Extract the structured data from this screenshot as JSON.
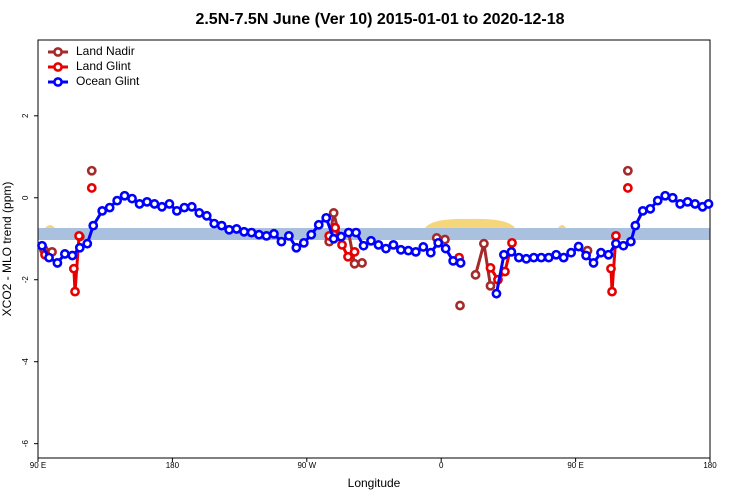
{
  "chart_data": {
    "type": "line",
    "title": "2.5N-7.5N June (Ver 10)   2015-01-01 to 2020-12-18",
    "x_label": "Longitude",
    "y_label": "XCO2 - MLO trend (ppm)",
    "xlim": [
      90,
      540
    ],
    "ylim": [
      -6.35,
      3.85
    ],
    "xticks": [
      {
        "value": 90,
        "label": "90 E"
      },
      180,
      {
        "value": 270,
        "label": "90 W"
      },
      {
        "value": 360,
        "label": "0"
      },
      {
        "value": 450,
        "label": "90 E"
      },
      {
        "value": 540,
        "label": "180"
      }
    ],
    "yticks": [
      -6,
      -4,
      -2,
      0,
      2
    ],
    "legend": "top-left",
    "series": [
      {
        "name": "Land Nadir",
        "color": "#a52a2a",
        "x": [
          94,
          99.4,
          null,
          118,
          null,
          126,
          null,
          285,
          288,
          292,
          298,
          302,
          307,
          null,
          357,
          362.5,
          null,
          372.6,
          null,
          383,
          388.6,
          393,
          null,
          442,
          null,
          458,
          null,
          485
        ],
        "values": [
          -1.27,
          -1.32,
          null,
          -0.95,
          null,
          0.66,
          null,
          -1.07,
          -0.37,
          -0.95,
          -0.85,
          -1.61,
          -1.59,
          null,
          -0.98,
          -1.02,
          null,
          -2.63,
          null,
          -1.88,
          -1.12,
          -2.15,
          null,
          -1.46,
          null,
          -1.29,
          null,
          0.66
        ]
      },
      {
        "name": "Land Glint",
        "color": "#e80000",
        "x": [
          94.7,
          null,
          114,
          114.8,
          117.5,
          null,
          126,
          null,
          285,
          289,
          293.6,
          297.6,
          302,
          null,
          372,
          null,
          393,
          398,
          402.7,
          407.4,
          null,
          473.7,
          474.4,
          477,
          null,
          485
        ],
        "values": [
          -1.39,
          null,
          -1.73,
          -2.29,
          -0.93,
          null,
          0.24,
          null,
          -0.93,
          -0.73,
          -1.15,
          -1.44,
          -1.32,
          null,
          -1.46,
          null,
          -1.71,
          -2.0,
          -1.8,
          -1.1,
          null,
          -1.73,
          -2.29,
          -0.93,
          null,
          0.24
        ]
      },
      {
        "name": "Ocean Glint",
        "color": "#0000ff",
        "x": [
          92.7,
          97.4,
          103,
          108,
          113,
          118,
          123,
          127,
          133,
          138,
          143,
          148,
          153,
          158,
          163,
          168,
          173,
          178,
          183,
          188,
          193,
          198,
          203,
          208,
          213,
          218,
          223,
          228,
          233,
          238,
          243,
          248,
          253,
          258,
          263,
          268,
          273,
          278,
          283,
          288,
          293,
          298,
          303,
          308,
          313,
          318,
          323,
          328,
          333,
          338,
          343,
          348,
          353,
          358,
          363,
          368,
          373,
          null,
          397,
          402,
          407,
          412,
          417,
          422,
          427,
          432,
          437,
          442,
          447,
          452,
          457,
          462,
          467,
          472,
          477,
          482,
          487,
          490,
          495,
          500,
          505,
          510,
          515,
          520,
          525,
          530,
          535,
          539
        ],
        "values": [
          -1.17,
          -1.46,
          -1.59,
          -1.37,
          -1.41,
          -1.22,
          -1.12,
          -0.68,
          -0.32,
          -0.24,
          -0.07,
          0.05,
          -0.02,
          -0.15,
          -0.1,
          -0.15,
          -0.22,
          -0.15,
          -0.32,
          -0.24,
          -0.22,
          -0.37,
          -0.44,
          -0.63,
          -0.68,
          -0.78,
          -0.76,
          -0.83,
          -0.85,
          -0.9,
          -0.93,
          -0.88,
          -1.07,
          -0.93,
          -1.22,
          -1.1,
          -0.9,
          -0.66,
          -0.49,
          -1.0,
          -0.95,
          -0.85,
          -0.85,
          -1.17,
          -1.05,
          -1.15,
          -1.24,
          -1.15,
          -1.27,
          -1.29,
          -1.32,
          -1.2,
          -1.34,
          -1.1,
          -1.24,
          -1.54,
          -1.59,
          null,
          -2.34,
          -1.39,
          -1.32,
          -1.46,
          -1.49,
          -1.46,
          -1.46,
          -1.46,
          -1.39,
          -1.46,
          -1.34,
          -1.19,
          -1.41,
          -1.59,
          -1.34,
          -1.39,
          -1.12,
          -1.17,
          -1.07,
          -0.68,
          -0.32,
          -0.27,
          -0.07,
          0.05,
          0,
          -0.15,
          -0.1,
          -0.15,
          -0.22,
          -0.15
        ]
      }
    ]
  }
}
